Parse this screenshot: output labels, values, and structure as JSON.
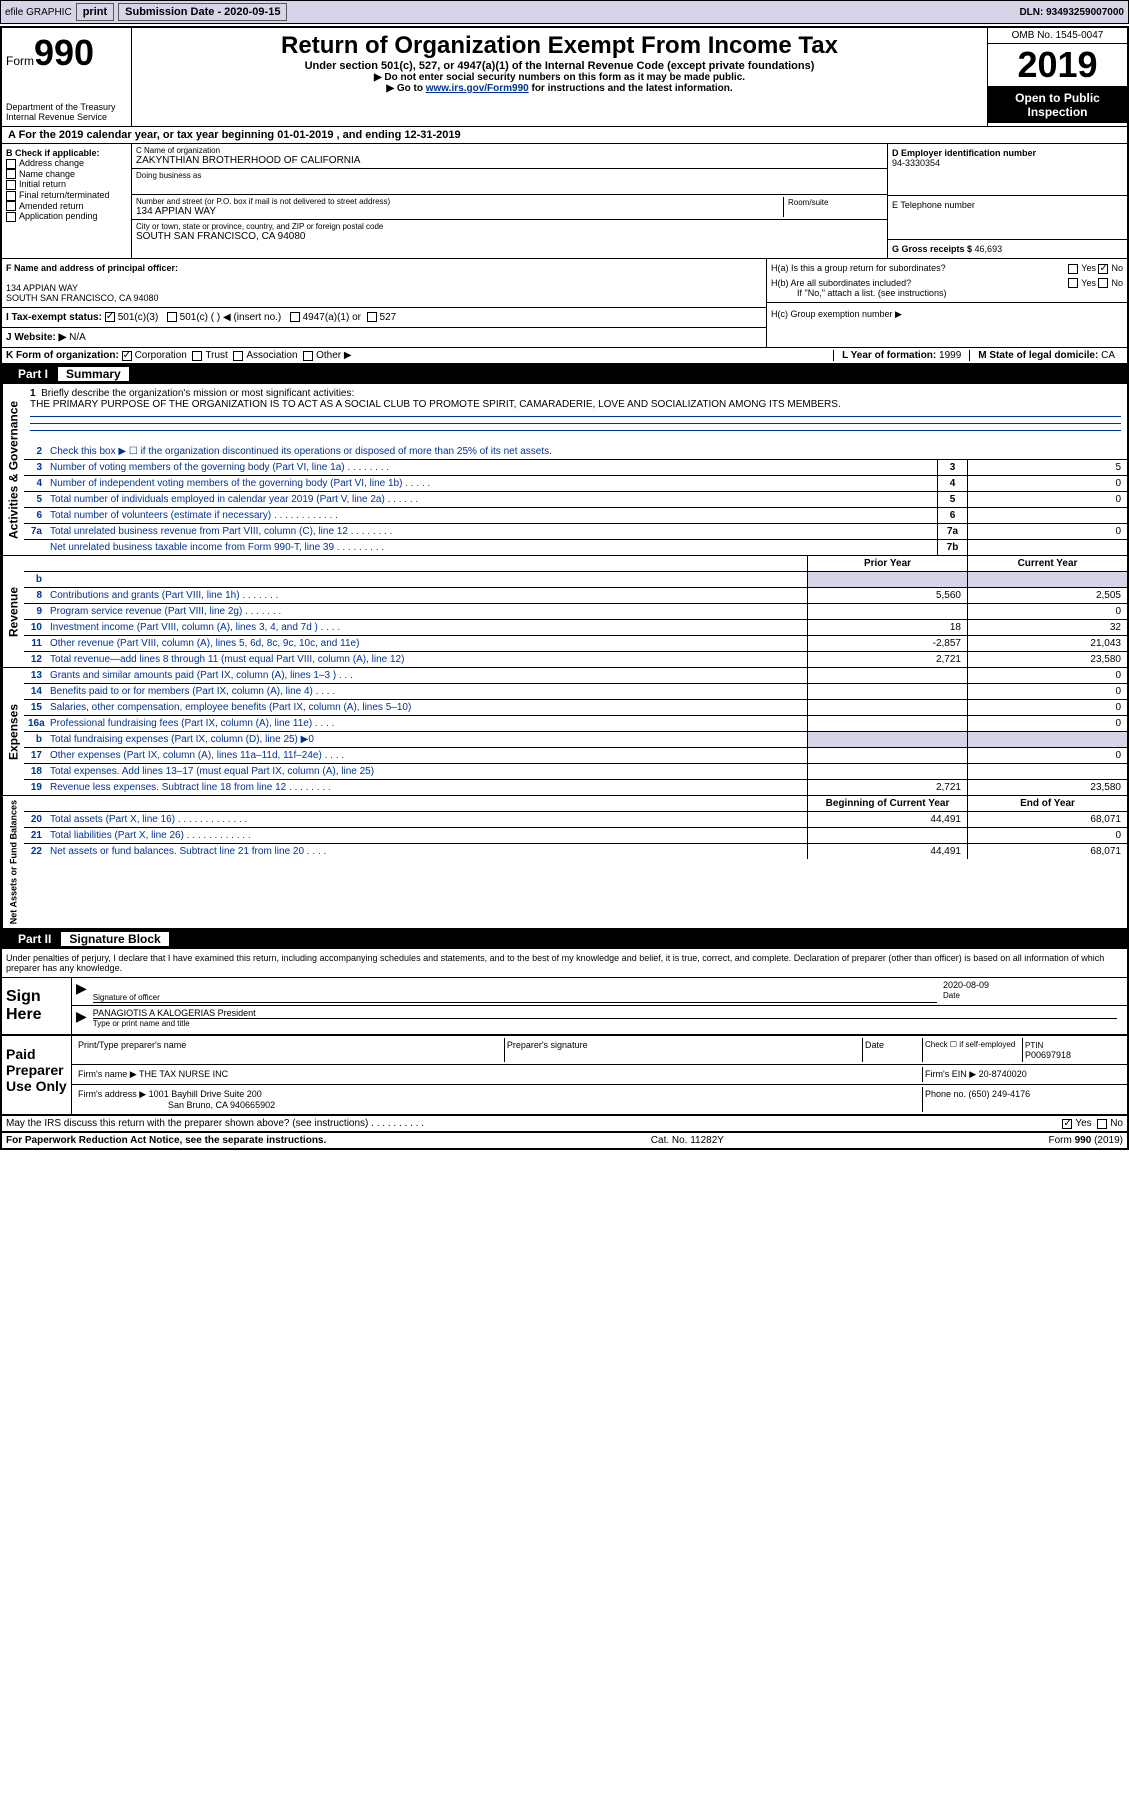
{
  "toolbar": {
    "efile": "efile GRAPHIC",
    "print": "print",
    "submission_label": "Submission Date - ",
    "submission_date": "2020-09-15",
    "dln_label": "DLN: ",
    "dln": "93493259007000"
  },
  "header": {
    "form_label": "Form",
    "form_number": "990",
    "dept": "Department of the Treasury\nInternal Revenue Service",
    "title": "Return of Organization Exempt From Income Tax",
    "sub1": "Under section 501(c), 527, or 4947(a)(1) of the Internal Revenue Code (except private foundations)",
    "sub2": "▶ Do not enter social security numbers on this form as it may be made public.",
    "sub3_pre": "▶ Go to ",
    "sub3_link": "www.irs.gov/Form990",
    "sub3_post": " for instructions and the latest information.",
    "omb": "OMB No. 1545-0047",
    "year": "2019",
    "open_pub": "Open to Public Inspection"
  },
  "line_a": "A For the 2019 calendar year, or tax year beginning 01-01-2019    , and ending 12-31-2019",
  "box_b": {
    "title": "B Check if applicable:",
    "opts": [
      "Address change",
      "Name change",
      "Initial return",
      "Final return/terminated",
      "Amended return",
      "Application pending"
    ]
  },
  "box_c": {
    "name_label": "C Name of organization",
    "name": "ZAKYNTHIAN BROTHERHOOD OF CALIFORNIA",
    "dba_label": "Doing business as",
    "street_label": "Number and street (or P.O. box if mail is not delivered to street address)",
    "room_label": "Room/suite",
    "street": "134 APPIAN WAY",
    "city_label": "City or town, state or province, country, and ZIP or foreign postal code",
    "city": "SOUTH SAN FRANCISCO, CA  94080"
  },
  "box_d": {
    "label": "D Employer identification number",
    "value": "94-3330354"
  },
  "box_e": {
    "label": "E Telephone number",
    "value": ""
  },
  "box_g": {
    "label": "G Gross receipts $ ",
    "value": "46,693"
  },
  "box_f": {
    "label": "F  Name and address of principal officer:",
    "addr1": "134 APPIAN WAY",
    "addr2": "SOUTH SAN FRANCISCO, CA  94080"
  },
  "box_h": {
    "ha": "H(a)  Is this a group return for subordinates?",
    "hb": "H(b)  Are all subordinates included?",
    "hb_note": "If \"No,\" attach a list. (see instructions)",
    "hc": "H(c)  Group exemption number ▶",
    "yes": "Yes",
    "no": "No"
  },
  "tax_exempt": {
    "label": "I  Tax-exempt status:",
    "o1": "501(c)(3)",
    "o2": "501(c) (  ) ◀ (insert no.)",
    "o3": "4947(a)(1) or",
    "o4": "527"
  },
  "website": {
    "label": "J  Website: ▶",
    "value": "  N/A"
  },
  "line_k": {
    "label": "K Form of organization:",
    "opts": [
      "Corporation",
      "Trust",
      "Association",
      "Other ▶"
    ]
  },
  "line_l": {
    "label": "L Year of formation: ",
    "value": "1999"
  },
  "line_m": {
    "label": "M State of legal domicile: ",
    "value": "CA"
  },
  "part1": {
    "num": "Part I",
    "title": "Summary"
  },
  "mission": {
    "num": "1",
    "label": "Briefly describe the organization's mission or most significant activities:",
    "text": "THE PRIMARY PURPOSE OF THE ORGANIZATION IS TO ACT AS A SOCIAL CLUB TO PROMOTE SPIRIT, CAMARADERIE, LOVE AND SOCIALIZATION AMONG ITS MEMBERS."
  },
  "governance_lines": [
    {
      "n": "2",
      "d": "Check this box ▶ ☐  if the organization discontinued its operations or disposed of more than 25% of its net assets.",
      "box": "",
      "v": ""
    },
    {
      "n": "3",
      "d": "Number of voting members of the governing body (Part VI, line 1a)  .   .   .   .   .   .   .   .",
      "box": "3",
      "v": "5"
    },
    {
      "n": "4",
      "d": "Number of independent voting members of the governing body (Part VI, line 1b)  .   .   .   .   .",
      "box": "4",
      "v": "0"
    },
    {
      "n": "5",
      "d": "Total number of individuals employed in calendar year 2019 (Part V, line 2a)  .   .   .   .   .   .",
      "box": "5",
      "v": "0"
    },
    {
      "n": "6",
      "d": "Total number of volunteers (estimate if necessary)   .   .   .   .   .   .   .   .   .   .   .   .",
      "box": "6",
      "v": ""
    },
    {
      "n": "7a",
      "d": "Total unrelated business revenue from Part VIII, column (C), line 12  .   .   .   .   .   .   .   .",
      "box": "7a",
      "v": "0"
    },
    {
      "n": "",
      "d": "Net unrelated business taxable income from Form 990-T, line 39   .   .   .   .   .   .   .   .   .",
      "box": "7b",
      "v": ""
    }
  ],
  "col_headers": {
    "prior": "Prior Year",
    "current": "Current Year"
  },
  "revenue_lines": [
    {
      "n": "b",
      "d": "",
      "p": "",
      "c": "",
      "shaded": true
    },
    {
      "n": "8",
      "d": "Contributions and grants (Part VIII, line 1h)   .   .   .   .   .   .   .",
      "p": "5,560",
      "c": "2,505"
    },
    {
      "n": "9",
      "d": "Program service revenue (Part VIII, line 2g)   .   .   .   .   .   .   .",
      "p": "",
      "c": "0"
    },
    {
      "n": "10",
      "d": "Investment income (Part VIII, column (A), lines 3, 4, and 7d )   .   .   .   .",
      "p": "18",
      "c": "32"
    },
    {
      "n": "11",
      "d": "Other revenue (Part VIII, column (A), lines 5, 6d, 8c, 9c, 10c, and 11e)",
      "p": "-2,857",
      "c": "21,043"
    },
    {
      "n": "12",
      "d": "Total revenue—add lines 8 through 11 (must equal Part VIII, column (A), line 12)",
      "p": "2,721",
      "c": "23,580"
    }
  ],
  "expense_lines": [
    {
      "n": "13",
      "d": "Grants and similar amounts paid (Part IX, column (A), lines 1–3 )   .   .   .",
      "p": "",
      "c": "0"
    },
    {
      "n": "14",
      "d": "Benefits paid to or for members (Part IX, column (A), line 4)   .   .   .   .",
      "p": "",
      "c": "0"
    },
    {
      "n": "15",
      "d": "Salaries, other compensation, employee benefits (Part IX, column (A), lines 5–10)",
      "p": "",
      "c": "0"
    },
    {
      "n": "16a",
      "d": "Professional fundraising fees (Part IX, column (A), line 11e)   .   .   .   .",
      "p": "",
      "c": "0"
    },
    {
      "n": "b",
      "d": "Total fundraising expenses (Part IX, column (D), line 25) ▶0",
      "p": "",
      "c": "",
      "shaded": true
    },
    {
      "n": "17",
      "d": "Other expenses (Part IX, column (A), lines 11a–11d, 11f–24e)   .   .   .   .",
      "p": "",
      "c": "0"
    },
    {
      "n": "18",
      "d": "Total expenses. Add lines 13–17 (must equal Part IX, column (A), line 25)",
      "p": "",
      "c": ""
    },
    {
      "n": "19",
      "d": "Revenue less expenses. Subtract line 18 from line 12 .   .   .   .   .   .   .   .",
      "p": "2,721",
      "c": "23,580"
    }
  ],
  "net_headers": {
    "begin": "Beginning of Current Year",
    "end": "End of Year"
  },
  "net_lines": [
    {
      "n": "20",
      "d": "Total assets (Part X, line 16)  .   .   .   .   .   .   .   .   .   .   .   .   .",
      "p": "44,491",
      "c": "68,071"
    },
    {
      "n": "21",
      "d": "Total liabilities (Part X, line 26)  .   .   .   .   .   .   .   .   .   .   .   .",
      "p": "",
      "c": "0"
    },
    {
      "n": "22",
      "d": "Net assets or fund balances. Subtract line 21 from line 20  .   .   .   .",
      "p": "44,491",
      "c": "68,071"
    }
  ],
  "part2": {
    "num": "Part II",
    "title": "Signature Block"
  },
  "sig_decl": "Under penalties of perjury, I declare that I have examined this return, including accompanying schedules and statements, and to the best of my knowledge and belief, it is true, correct, and complete. Declaration of preparer (other than officer) is based on all information of which preparer has any knowledge.",
  "sign_here": "Sign Here",
  "sig": {
    "sig_label": "Signature of officer",
    "date_label": "Date",
    "date": "2020-08-09",
    "name": "PANAGIOTIS A KALOGERIAS  President",
    "name_label": "Type or print name and title"
  },
  "paid_prep": "Paid Preparer Use Only",
  "prep": {
    "c1": "Print/Type preparer's name",
    "c2": "Preparer's signature",
    "c3": "Date",
    "c4_label": "Check ☐ if self-employed",
    "c5_label": "PTIN",
    "c5": "P00697918",
    "firm_label": "Firm's name    ▶",
    "firm": "THE TAX NURSE INC",
    "ein_label": "Firm's EIN ▶",
    "ein": "20-8740020",
    "addr_label": "Firm's address ▶",
    "addr1": "1001 Bayhill Drive Suite 200",
    "addr2": "San Bruno, CA  940665902",
    "phone_label": "Phone no. ",
    "phone": "(650) 249-4176"
  },
  "discuss": "May the IRS discuss this return with the preparer shown above? (see instructions)   .   .   .   .   .   .   .   .   .   .",
  "footer": {
    "left": "For Paperwork Reduction Act Notice, see the separate instructions.",
    "mid": "Cat. No. 11282Y",
    "right": "Form 990 (2019)"
  },
  "vtabs": {
    "gov": "Activities & Governance",
    "rev": "Revenue",
    "exp": "Expenses",
    "net": "Net Assets or Fund Balances"
  }
}
